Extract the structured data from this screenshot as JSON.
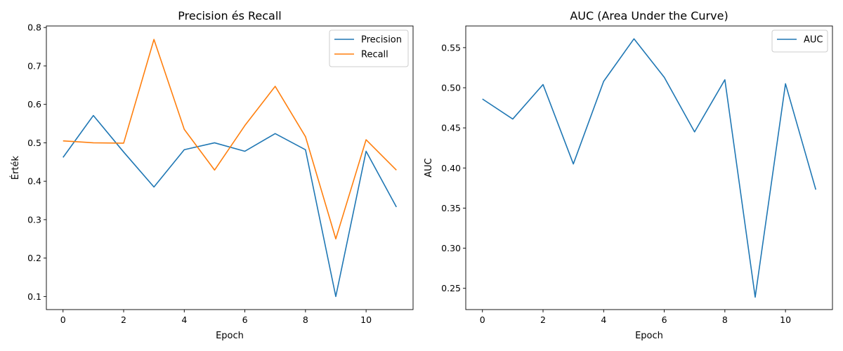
{
  "chart_data": [
    {
      "type": "line",
      "title": "Precision és Recall",
      "xlabel": "Epoch",
      "ylabel": "Érték",
      "x": [
        0,
        1,
        2,
        3,
        4,
        5,
        6,
        7,
        8,
        9,
        10,
        11
      ],
      "xlim": [
        -0.55,
        11.55
      ],
      "ylim": [
        0.066,
        0.804
      ],
      "xticks": [
        0,
        2,
        4,
        6,
        8,
        10
      ],
      "yticks": [
        0.1,
        0.2,
        0.3,
        0.4,
        0.5,
        0.6,
        0.7,
        0.8
      ],
      "legend": "top-right",
      "grid": false,
      "series": [
        {
          "name": "Precision",
          "color": "#1f77b4",
          "values": [
            0.462,
            0.571,
            0.476,
            0.385,
            0.482,
            0.5,
            0.478,
            0.524,
            0.482,
            0.1,
            0.478,
            0.333
          ]
        },
        {
          "name": "Recall",
          "color": "#ff7f0e",
          "values": [
            0.505,
            0.5,
            0.499,
            0.769,
            0.535,
            0.429,
            0.545,
            0.647,
            0.516,
            0.25,
            0.508,
            0.429
          ]
        }
      ]
    },
    {
      "type": "line",
      "title": "AUC (Area Under the Curve)",
      "xlabel": "Epoch",
      "ylabel": "AUC",
      "x": [
        0,
        1,
        2,
        3,
        4,
        5,
        6,
        7,
        8,
        9,
        10,
        11
      ],
      "xlim": [
        -0.55,
        11.55
      ],
      "ylim": [
        0.2235,
        0.577
      ],
      "xticks": [
        0,
        2,
        4,
        6,
        8,
        10
      ],
      "yticks": [
        0.25,
        0.3,
        0.35,
        0.4,
        0.45,
        0.5,
        0.55
      ],
      "legend": "top-right",
      "grid": false,
      "series": [
        {
          "name": "AUC",
          "color": "#1f77b4",
          "values": [
            0.486,
            0.461,
            0.504,
            0.405,
            0.508,
            0.561,
            0.513,
            0.445,
            0.51,
            0.239,
            0.505,
            0.373
          ]
        }
      ]
    }
  ]
}
